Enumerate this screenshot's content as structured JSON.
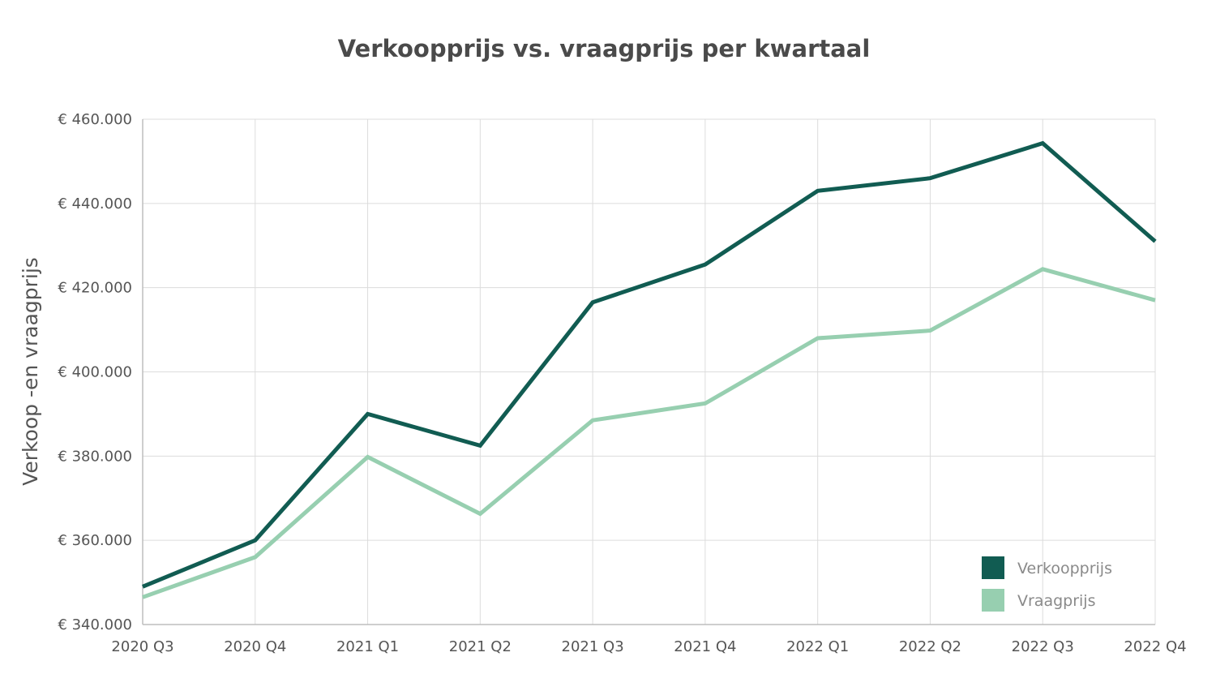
{
  "chart_data": {
    "type": "line",
    "title": "Verkoopprijs vs. vraagprijs per kwartaal",
    "xlabel": "",
    "ylabel": "Verkoop -en vraagprijs",
    "categories": [
      "2020 Q3",
      "2020 Q4",
      "2021 Q1",
      "2021 Q2",
      "2021 Q3",
      "2021 Q4",
      "2022 Q1",
      "2022 Q2",
      "2022 Q3",
      "2022 Q4"
    ],
    "ylim": [
      340000,
      460000
    ],
    "yticks": [
      340000,
      360000,
      380000,
      400000,
      420000,
      440000,
      460000
    ],
    "ytick_labels": [
      "€ 340.000",
      "€ 360.000",
      "€ 380.000",
      "€ 400.000",
      "€ 420.000",
      "€ 440.000",
      "€ 460.000"
    ],
    "grid": true,
    "legend_position": "bottom-right",
    "series": [
      {
        "name": "Verkoopprijs",
        "color": "#115c52",
        "values": [
          349000,
          360000,
          390000,
          382500,
          416500,
          425500,
          443000,
          446000,
          454300,
          431000
        ]
      },
      {
        "name": "Vraagprijs",
        "color": "#97cfb0",
        "values": [
          346500,
          356000,
          379800,
          366300,
          388500,
          392500,
          408000,
          409800,
          424400,
          417000
        ]
      }
    ]
  }
}
